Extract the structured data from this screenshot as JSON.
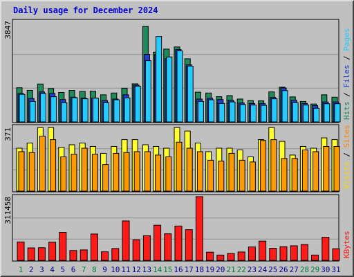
{
  "title": "Daily usage for December 2024",
  "colors": {
    "frame": "#c0c0c0",
    "plot": "#c0c0c0",
    "hits": "#1f8a5a",
    "files": "#1f3fd0",
    "pages": "#22ccff",
    "visits": "#ffff30",
    "sites": "#ff9900",
    "kbytes": "#ff1a1a",
    "weekday_label": "#000090",
    "weekend_label": "#008040",
    "gridline": "#909090"
  },
  "legends": {
    "top": [
      {
        "text": "Hits",
        "color": "#1f8a5a"
      },
      {
        "text": " / ",
        "color": "#000000"
      },
      {
        "text": "Files",
        "color": "#1f3fd0"
      },
      {
        "text": " / ",
        "color": "#000000"
      },
      {
        "text": "Pages",
        "color": "#22ccff"
      }
    ],
    "middle": [
      {
        "text": "Visits",
        "color": "#ffd400"
      },
      {
        "text": " / ",
        "color": "#000000"
      },
      {
        "text": "Sites",
        "color": "#ff8800"
      }
    ],
    "bottom": [
      {
        "text": "KBytes",
        "color": "#ff1a1a"
      }
    ]
  },
  "chart_data": [
    {
      "type": "bar",
      "panel": "top",
      "y_max_label": "3847",
      "ylim": [
        0,
        3847
      ],
      "categories": [
        "1",
        "2",
        "3",
        "4",
        "5",
        "6",
        "7",
        "8",
        "9",
        "10",
        "11",
        "12",
        "13",
        "14",
        "15",
        "16",
        "17",
        "18",
        "19",
        "20",
        "21",
        "22",
        "23",
        "24",
        "25",
        "26",
        "27",
        "28",
        "29",
        "30",
        "31"
      ],
      "weekend_days": [
        "1",
        "7",
        "8",
        "14",
        "15",
        "21",
        "22",
        "28",
        "29"
      ],
      "series": [
        {
          "name": "Hits",
          "values": [
            1300,
            1200,
            1440,
            1270,
            1120,
            1200,
            1160,
            1170,
            1030,
            1100,
            1280,
            1450,
            3630,
            2650,
            2770,
            2850,
            2400,
            1130,
            1100,
            960,
            1000,
            870,
            810,
            800,
            1140,
            1320,
            950,
            780,
            680,
            1030,
            940
          ]
        },
        {
          "name": "Files",
          "values": [
            1080,
            890,
            1140,
            1080,
            850,
            940,
            900,
            910,
            810,
            870,
            1030,
            1400,
            2570,
            2560,
            2400,
            2750,
            2170,
            870,
            900,
            850,
            820,
            720,
            700,
            700,
            930,
            1290,
            830,
            700,
            620,
            760,
            760
          ]
        },
        {
          "name": "Pages",
          "values": [
            1050,
            780,
            1080,
            960,
            730,
            920,
            880,
            900,
            730,
            840,
            910,
            1360,
            2330,
            3250,
            2470,
            2700,
            2120,
            780,
            840,
            700,
            760,
            660,
            640,
            630,
            880,
            1190,
            730,
            640,
            520,
            690,
            690
          ]
        }
      ]
    },
    {
      "type": "bar",
      "panel": "middle",
      "y_max_label": "371",
      "ylim": [
        0,
        371
      ],
      "series": [
        {
          "name": "Visits",
          "values": [
            250,
            280,
            370,
            370,
            255,
            270,
            280,
            260,
            220,
            260,
            300,
            300,
            270,
            260,
            250,
            370,
            350,
            280,
            230,
            250,
            250,
            240,
            200,
            300,
            370,
            290,
            210,
            260,
            250,
            310,
            300
          ]
        },
        {
          "name": "Sites",
          "values": [
            230,
            225,
            320,
            300,
            200,
            215,
            250,
            215,
            155,
            220,
            225,
            230,
            230,
            210,
            200,
            285,
            250,
            230,
            180,
            175,
            220,
            180,
            170,
            295,
            300,
            190,
            190,
            240,
            230,
            260,
            260
          ]
        }
      ]
    },
    {
      "type": "bar",
      "panel": "bottom",
      "y_max_label": "311458",
      "ylim": [
        0,
        311458
      ],
      "series": [
        {
          "name": "KBytes",
          "values": [
            90000,
            61000,
            62000,
            89000,
            137000,
            48000,
            51000,
            129000,
            42000,
            58000,
            193000,
            101000,
            121000,
            172000,
            130000,
            168000,
            150000,
            311458,
            40000,
            26000,
            34000,
            41000,
            66000,
            94000,
            59000,
            67000,
            71000,
            78000,
            26000,
            113000,
            57000
          ]
        }
      ]
    }
  ]
}
